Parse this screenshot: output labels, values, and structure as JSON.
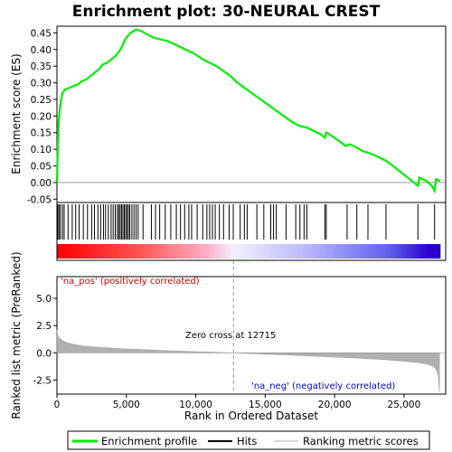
{
  "chart_data": {
    "type": "line",
    "title": "Enrichment plot: 30-NEURAL CREST",
    "top_panel": {
      "ylabel": "Enrichment score (ES)",
      "ylim": [
        -0.06,
        0.47
      ],
      "yticks": [
        -0.05,
        0.0,
        0.05,
        0.1,
        0.15,
        0.2,
        0.25,
        0.3,
        0.35,
        0.4,
        0.45
      ],
      "ytick_labels": [
        "-0.05",
        "0.00",
        "0.05",
        "0.10",
        "0.15",
        "0.20",
        "0.25",
        "0.30",
        "0.35",
        "0.40",
        "0.45"
      ],
      "series": [
        {
          "name": "Enrichment profile",
          "color": "#00ee00",
          "x": [
            0,
            100,
            200,
            300,
            400,
            600,
            900,
            1200,
            1500,
            1800,
            2100,
            2400,
            2700,
            3000,
            3300,
            3600,
            3900,
            4200,
            4500,
            4700,
            4900,
            5100,
            5300,
            5500,
            5700,
            5900,
            6100,
            6500,
            7000,
            7500,
            8000,
            8500,
            9000,
            9500,
            10000,
            10500,
            11000,
            11500,
            12000,
            12500,
            13000,
            13500,
            14000,
            14500,
            15000,
            15500,
            16000,
            16500,
            17000,
            17500,
            18000,
            18500,
            19000,
            19300,
            19400,
            19800,
            20300,
            20800,
            21100,
            21600,
            22000,
            22400,
            23000,
            23700,
            24200,
            24800,
            25400,
            26000,
            26100,
            26600,
            27000,
            27200,
            27300,
            27600
          ],
          "y": [
            0.0,
            0.17,
            0.22,
            0.25,
            0.27,
            0.28,
            0.285,
            0.29,
            0.295,
            0.305,
            0.31,
            0.32,
            0.33,
            0.34,
            0.355,
            0.36,
            0.37,
            0.38,
            0.395,
            0.41,
            0.43,
            0.44,
            0.45,
            0.455,
            0.46,
            0.458,
            0.455,
            0.445,
            0.435,
            0.43,
            0.425,
            0.415,
            0.405,
            0.395,
            0.385,
            0.37,
            0.36,
            0.35,
            0.335,
            0.32,
            0.3,
            0.285,
            0.27,
            0.255,
            0.24,
            0.225,
            0.21,
            0.195,
            0.18,
            0.17,
            0.165,
            0.155,
            0.145,
            0.135,
            0.15,
            0.14,
            0.125,
            0.11,
            0.115,
            0.105,
            0.095,
            0.09,
            0.08,
            0.065,
            0.05,
            0.03,
            0.01,
            -0.01,
            0.015,
            0.005,
            -0.01,
            -0.025,
            0.01,
            0.005
          ]
        }
      ],
      "hits": [
        60,
        150,
        250,
        400,
        520,
        800,
        1100,
        1350,
        1600,
        1900,
        2200,
        2500,
        2700,
        2950,
        3150,
        3350,
        3500,
        3700,
        3900,
        4050,
        4200,
        4350,
        4450,
        4550,
        4650,
        4750,
        4850,
        4950,
        5050,
        5150,
        5250,
        5400,
        5550,
        5700,
        5850,
        6200,
        6800,
        7100,
        7400,
        7800,
        8200,
        8600,
        8900,
        9200,
        9500,
        9700,
        10100,
        10500,
        10800,
        11000,
        11200,
        11400,
        11700,
        12000,
        12400,
        12700,
        13200,
        13500,
        13700,
        14400,
        14900,
        15400,
        15600,
        15800,
        16500,
        17200,
        17500,
        17800,
        18000,
        19300,
        19400,
        20900,
        21600,
        22400,
        23700,
        26000,
        27200
      ]
    },
    "bottom_panel": {
      "ylabel": "Ranked list metric (PreRanked)",
      "ylim": [
        -3.8,
        7.0
      ],
      "yticks": [
        -2.5,
        0.0,
        2.5,
        5.0
      ],
      "ytick_labels": [
        "-2.5",
        "0.0",
        "2.5",
        "5.0"
      ],
      "metric_x": [
        0,
        50,
        150,
        300,
        500,
        800,
        1200,
        2000,
        3000,
        4500,
        6000,
        8000,
        10000,
        12715,
        15000,
        18000,
        21000,
        23500,
        25000,
        26000,
        26700,
        27100,
        27300,
        27450,
        27550
      ],
      "metric_y": [
        2.1,
        1.6,
        1.4,
        1.2,
        1.05,
        0.9,
        0.78,
        0.6,
        0.5,
        0.38,
        0.3,
        0.2,
        0.1,
        0.0,
        -0.12,
        -0.28,
        -0.45,
        -0.62,
        -0.78,
        -0.9,
        -1.05,
        -1.25,
        -1.5,
        -2.0,
        -3.6
      ],
      "zero_cross_rank": 12715,
      "zero_cross_label": "Zero cross at 12715",
      "pos_label": "'na_pos' (positively correlated)",
      "neg_label": "'na_neg' (negatively correlated)",
      "pos_color": "#cc0000",
      "neg_color": "#0000cc"
    },
    "xlabel": "Rank in Ordered Dataset",
    "xlim": [
      0,
      28000
    ],
    "xticks": [
      0,
      5000,
      10000,
      15000,
      20000,
      25000
    ],
    "xtick_labels": [
      "0",
      "5,000",
      "10,000",
      "15,000",
      "20,000",
      "25,000"
    ],
    "n_genes": 27600,
    "legend": {
      "position": "bottom",
      "items": [
        {
          "label": "Enrichment profile",
          "color": "#00ee00"
        },
        {
          "label": "Hits",
          "color": "#000000"
        },
        {
          "label": "Ranking metric scores",
          "color": "#b0b0b0"
        }
      ]
    }
  }
}
